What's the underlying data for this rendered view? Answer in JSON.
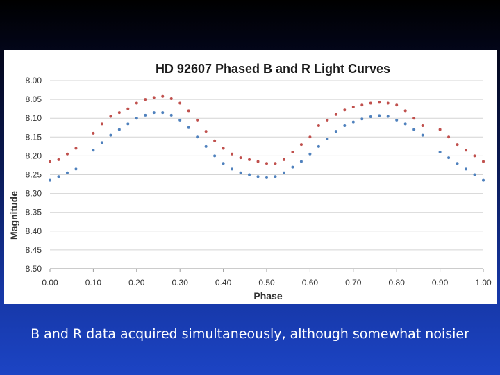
{
  "caption": "B and R data acquired simultaneously, although somewhat noisier",
  "chart_data": {
    "type": "scatter",
    "title": "HD 92607 Phased B and R Light Curves",
    "xlabel": "Phase",
    "ylabel": "Magnitude",
    "xlim": [
      0.0,
      1.0
    ],
    "ylim": [
      8.0,
      8.5
    ],
    "y_inverted": true,
    "x_ticks": [
      "0.00",
      "0.10",
      "0.20",
      "0.30",
      "0.40",
      "0.50",
      "0.60",
      "0.70",
      "0.80",
      "0.90",
      "1.00"
    ],
    "y_ticks": [
      "8.00",
      "8.05",
      "8.10",
      "8.15",
      "8.20",
      "8.25",
      "8.30",
      "8.35",
      "8.40",
      "8.45",
      "8.50"
    ],
    "grid": true,
    "legend": "none",
    "series": [
      {
        "color": "#c0504d",
        "x": [
          0.0,
          0.02,
          0.04,
          0.06,
          0.1,
          0.12,
          0.14,
          0.16,
          0.18,
          0.2,
          0.22,
          0.24,
          0.26,
          0.28,
          0.3,
          0.32,
          0.34,
          0.36,
          0.38,
          0.4,
          0.42,
          0.44,
          0.46,
          0.48,
          0.5,
          0.52,
          0.54,
          0.56,
          0.58,
          0.6,
          0.62,
          0.64,
          0.66,
          0.68,
          0.7,
          0.72,
          0.74,
          0.76,
          0.78,
          0.8,
          0.82,
          0.84,
          0.86,
          0.9,
          0.92,
          0.94,
          0.96,
          0.98,
          1.0
        ],
        "y": [
          8.215,
          8.21,
          8.195,
          8.18,
          8.14,
          8.115,
          8.095,
          8.085,
          8.075,
          8.06,
          8.05,
          8.045,
          8.042,
          8.048,
          8.06,
          8.08,
          8.105,
          8.135,
          8.16,
          8.18,
          8.195,
          8.205,
          8.21,
          8.215,
          8.22,
          8.22,
          8.21,
          8.19,
          8.17,
          8.15,
          8.12,
          8.105,
          8.09,
          8.078,
          8.07,
          8.065,
          8.06,
          8.058,
          8.06,
          8.065,
          8.08,
          8.1,
          8.12,
          8.13,
          8.15,
          8.17,
          8.185,
          8.2,
          8.215
        ]
      },
      {
        "color": "#4f81bd",
        "x": [
          0.0,
          0.02,
          0.04,
          0.06,
          0.1,
          0.12,
          0.14,
          0.16,
          0.18,
          0.2,
          0.22,
          0.24,
          0.26,
          0.28,
          0.3,
          0.32,
          0.34,
          0.36,
          0.38,
          0.4,
          0.42,
          0.44,
          0.46,
          0.48,
          0.5,
          0.52,
          0.54,
          0.56,
          0.58,
          0.6,
          0.62,
          0.64,
          0.66,
          0.68,
          0.7,
          0.72,
          0.74,
          0.76,
          0.78,
          0.8,
          0.82,
          0.84,
          0.86,
          0.9,
          0.92,
          0.94,
          0.96,
          0.98,
          1.0
        ],
        "y": [
          8.265,
          8.255,
          8.245,
          8.235,
          8.185,
          8.165,
          8.145,
          8.13,
          8.115,
          8.1,
          8.092,
          8.085,
          8.085,
          8.092,
          8.105,
          8.125,
          8.15,
          8.175,
          8.2,
          8.22,
          8.235,
          8.245,
          8.25,
          8.255,
          8.258,
          8.255,
          8.245,
          8.23,
          8.215,
          8.195,
          8.175,
          8.155,
          8.135,
          8.12,
          8.11,
          8.102,
          8.096,
          8.093,
          8.095,
          8.105,
          8.115,
          8.13,
          8.145,
          8.19,
          8.205,
          8.22,
          8.235,
          8.25,
          8.265
        ]
      }
    ]
  }
}
